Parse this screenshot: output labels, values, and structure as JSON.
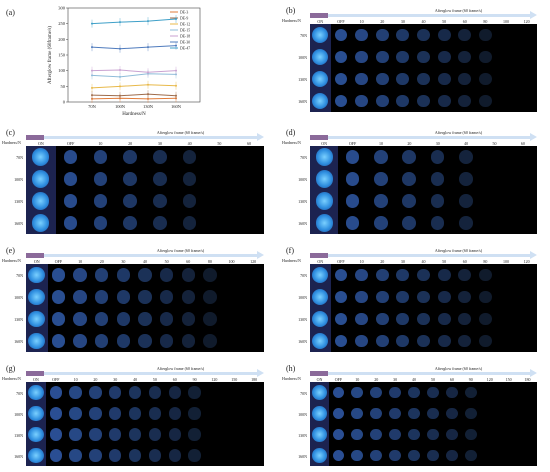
{
  "chart_data": [
    {
      "panel": "(a)",
      "type": "line",
      "xlabel": "Hardness/N",
      "ylabel": "Afterglow frame (60frame/s)",
      "categories": [
        "70N",
        "100N",
        "130N",
        "160N"
      ],
      "ylim": [
        0,
        300
      ],
      "yticks": [
        0,
        50,
        100,
        150,
        200,
        250,
        300
      ],
      "legend_position": "right",
      "series": [
        {
          "name": "DE-3",
          "color": "#e07b39",
          "values": [
            10,
            12,
            10,
            12
          ]
        },
        {
          "name": "DE-9",
          "color": "#9e6b4a",
          "values": [
            22,
            20,
            25,
            20
          ]
        },
        {
          "name": "DE-12",
          "color": "#e8b94a",
          "values": [
            45,
            50,
            55,
            52
          ]
        },
        {
          "name": "DE-15",
          "color": "#8fbcd9",
          "values": [
            85,
            80,
            90,
            88
          ]
        },
        {
          "name": "DE-18",
          "color": "#c9a2d1",
          "values": [
            100,
            102,
            95,
            100
          ]
        },
        {
          "name": "DE-30",
          "color": "#4f7bbd",
          "values": [
            175,
            170,
            175,
            180
          ]
        },
        {
          "name": "DE-47",
          "color": "#3fa0c8",
          "values": [
            250,
            255,
            258,
            265
          ]
        }
      ]
    }
  ],
  "panels": [
    {
      "label": "(b)",
      "hdr": "Hardness/N",
      "title": "Afterglow frame (60 frame/s)",
      "on": "ON",
      "cols": [
        "OFF",
        "10",
        "20",
        "30",
        "40",
        "50",
        "60",
        "80",
        "100",
        "120"
      ],
      "rows": [
        "70N",
        "100N",
        "130N",
        "160N"
      ]
    },
    {
      "label": "(c)",
      "hdr": "Hardness/N",
      "title": "Afterglow frame (60 frame/s)",
      "on": "ON",
      "cols": [
        "OFF",
        "10",
        "20",
        "30",
        "40",
        "50",
        "60"
      ],
      "rows": [
        "70N",
        "100N",
        "130N",
        "160N"
      ]
    },
    {
      "label": "(d)",
      "hdr": "Hardness/N",
      "title": "Afterglow frame (60 frame/s)",
      "on": "ON",
      "cols": [
        "OFF",
        "10",
        "20",
        "30",
        "40",
        "50",
        "60"
      ],
      "rows": [
        "70N",
        "100N",
        "130N",
        "160N"
      ]
    },
    {
      "label": "(e)",
      "hdr": "Hardness/N",
      "title": "Afterglow frame (60 frame/s)",
      "on": "ON",
      "cols": [
        "OFF",
        "10",
        "20",
        "30",
        "40",
        "50",
        "60",
        "80",
        "100",
        "120"
      ],
      "rows": [
        "70N",
        "100N",
        "130N",
        "160N"
      ]
    },
    {
      "label": "(f)",
      "hdr": "Hardness/N",
      "title": "Afterglow frame (60 frame/s)",
      "on": "ON",
      "cols": [
        "OFF",
        "10",
        "20",
        "30",
        "40",
        "50",
        "60",
        "80",
        "100",
        "120"
      ],
      "rows": [
        "70N",
        "100N",
        "130N",
        "160N"
      ]
    },
    {
      "label": "(g)",
      "hdr": "Hardness/N",
      "title": "Afterglow frame (60 frame/s)",
      "on": "ON",
      "cols": [
        "OFF",
        "10",
        "20",
        "30",
        "40",
        "50",
        "60",
        "90",
        "120",
        "150",
        "180"
      ],
      "rows": [
        "70N",
        "100N",
        "130N",
        "160N"
      ]
    },
    {
      "label": "(h)",
      "hdr": "Hardness/N",
      "title": "Afterglow frame (60 frame/s)",
      "on": "ON",
      "cols": [
        "OFF",
        "10",
        "20",
        "30",
        "40",
        "50",
        "60",
        "90",
        "120",
        "150",
        "180"
      ],
      "rows": [
        "70N",
        "100N",
        "130N",
        "160N"
      ]
    }
  ]
}
